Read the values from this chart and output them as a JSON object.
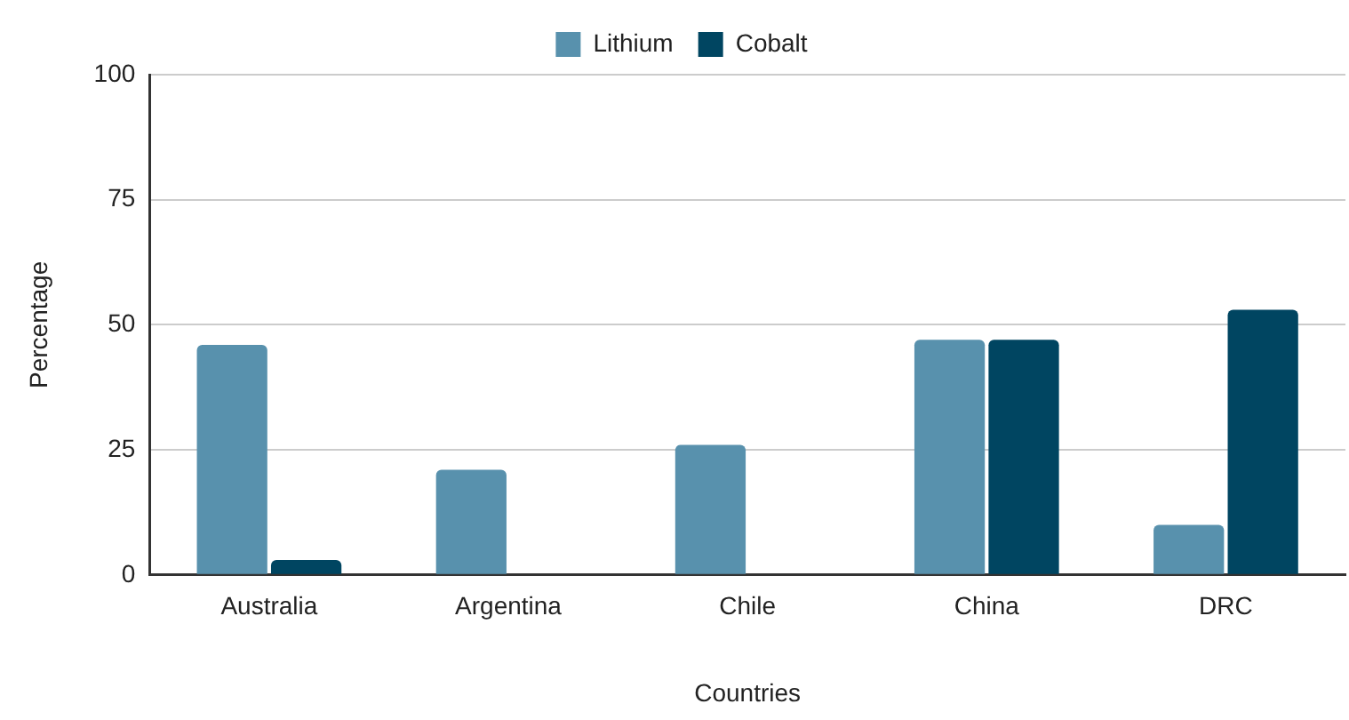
{
  "chart_data": {
    "type": "bar",
    "xlabel": "Countries",
    "ylabel": "Percentage",
    "categories": [
      "Australia",
      "Argentina",
      "Chile",
      "China",
      "DRC"
    ],
    "series": [
      {
        "name": "Lithium",
        "color": "#5891ad",
        "values": [
          46,
          21,
          26,
          47,
          10
        ]
      },
      {
        "name": "Cobalt",
        "color": "#004561",
        "values": [
          3,
          null,
          null,
          47,
          53
        ]
      }
    ],
    "ylim": [
      0,
      100
    ],
    "yticks": [
      0,
      25,
      50,
      75,
      100
    ],
    "grid": "y",
    "legend": "top"
  }
}
